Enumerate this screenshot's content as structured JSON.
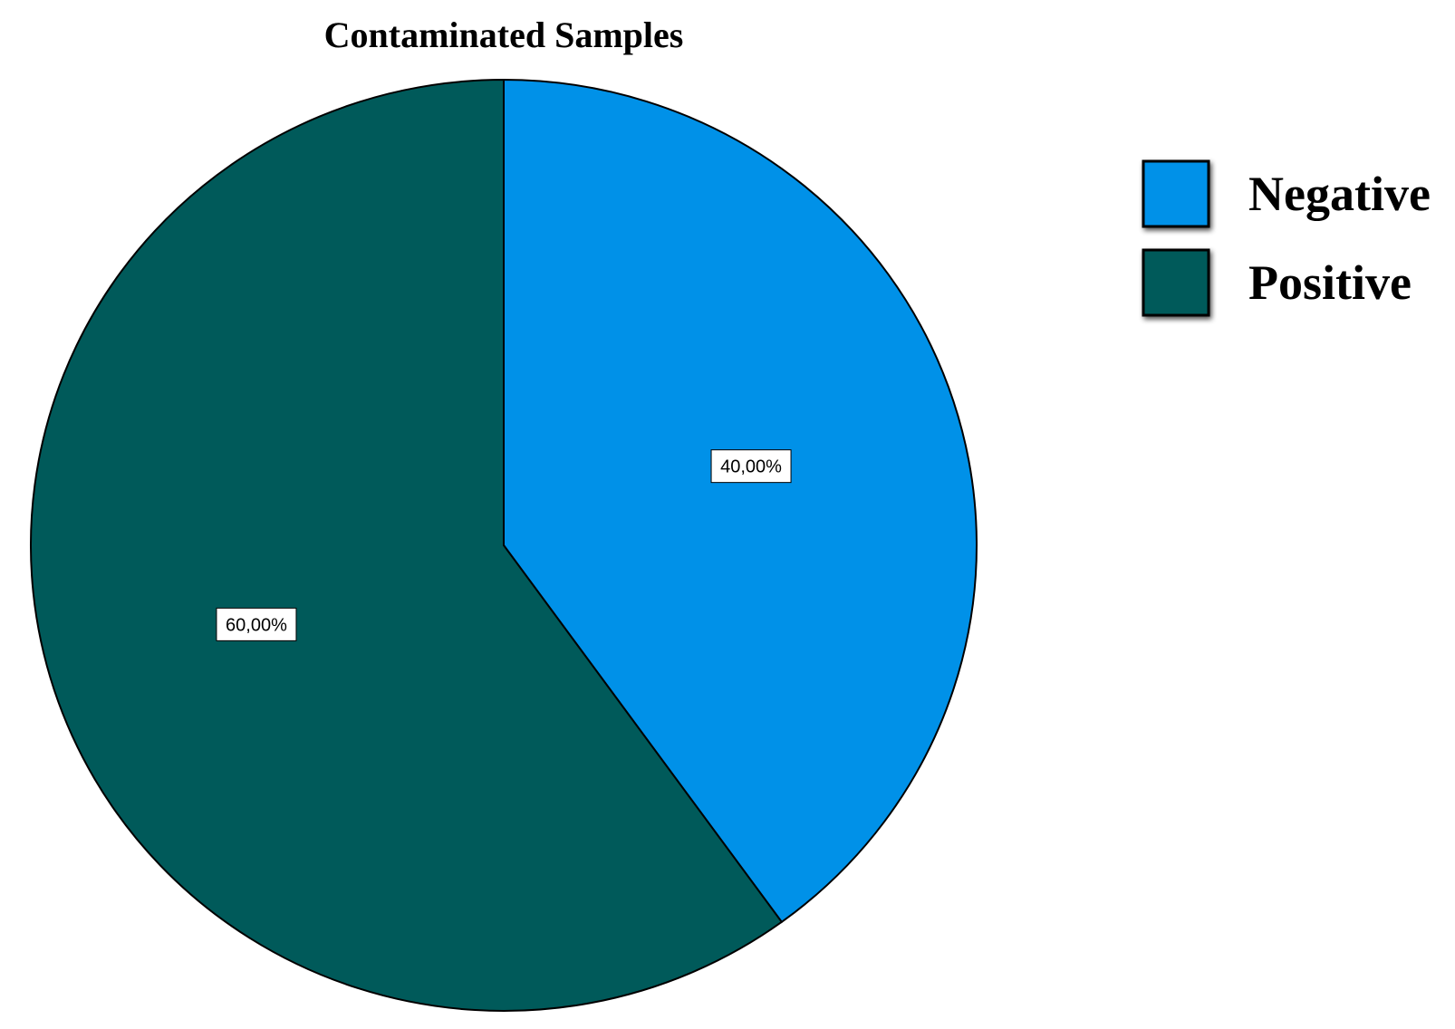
{
  "chart_data": {
    "type": "pie",
    "title": "Contaminated Samples",
    "categories": [
      "Negative",
      "Positive"
    ],
    "values": [
      40,
      60
    ],
    "data_labels": [
      "40,00%",
      "60,00%"
    ],
    "colors": [
      "#0091E8",
      "#005A5A"
    ],
    "start_angle": "12 o'clock",
    "direction": "clockwise",
    "legend_position": "top-right"
  }
}
